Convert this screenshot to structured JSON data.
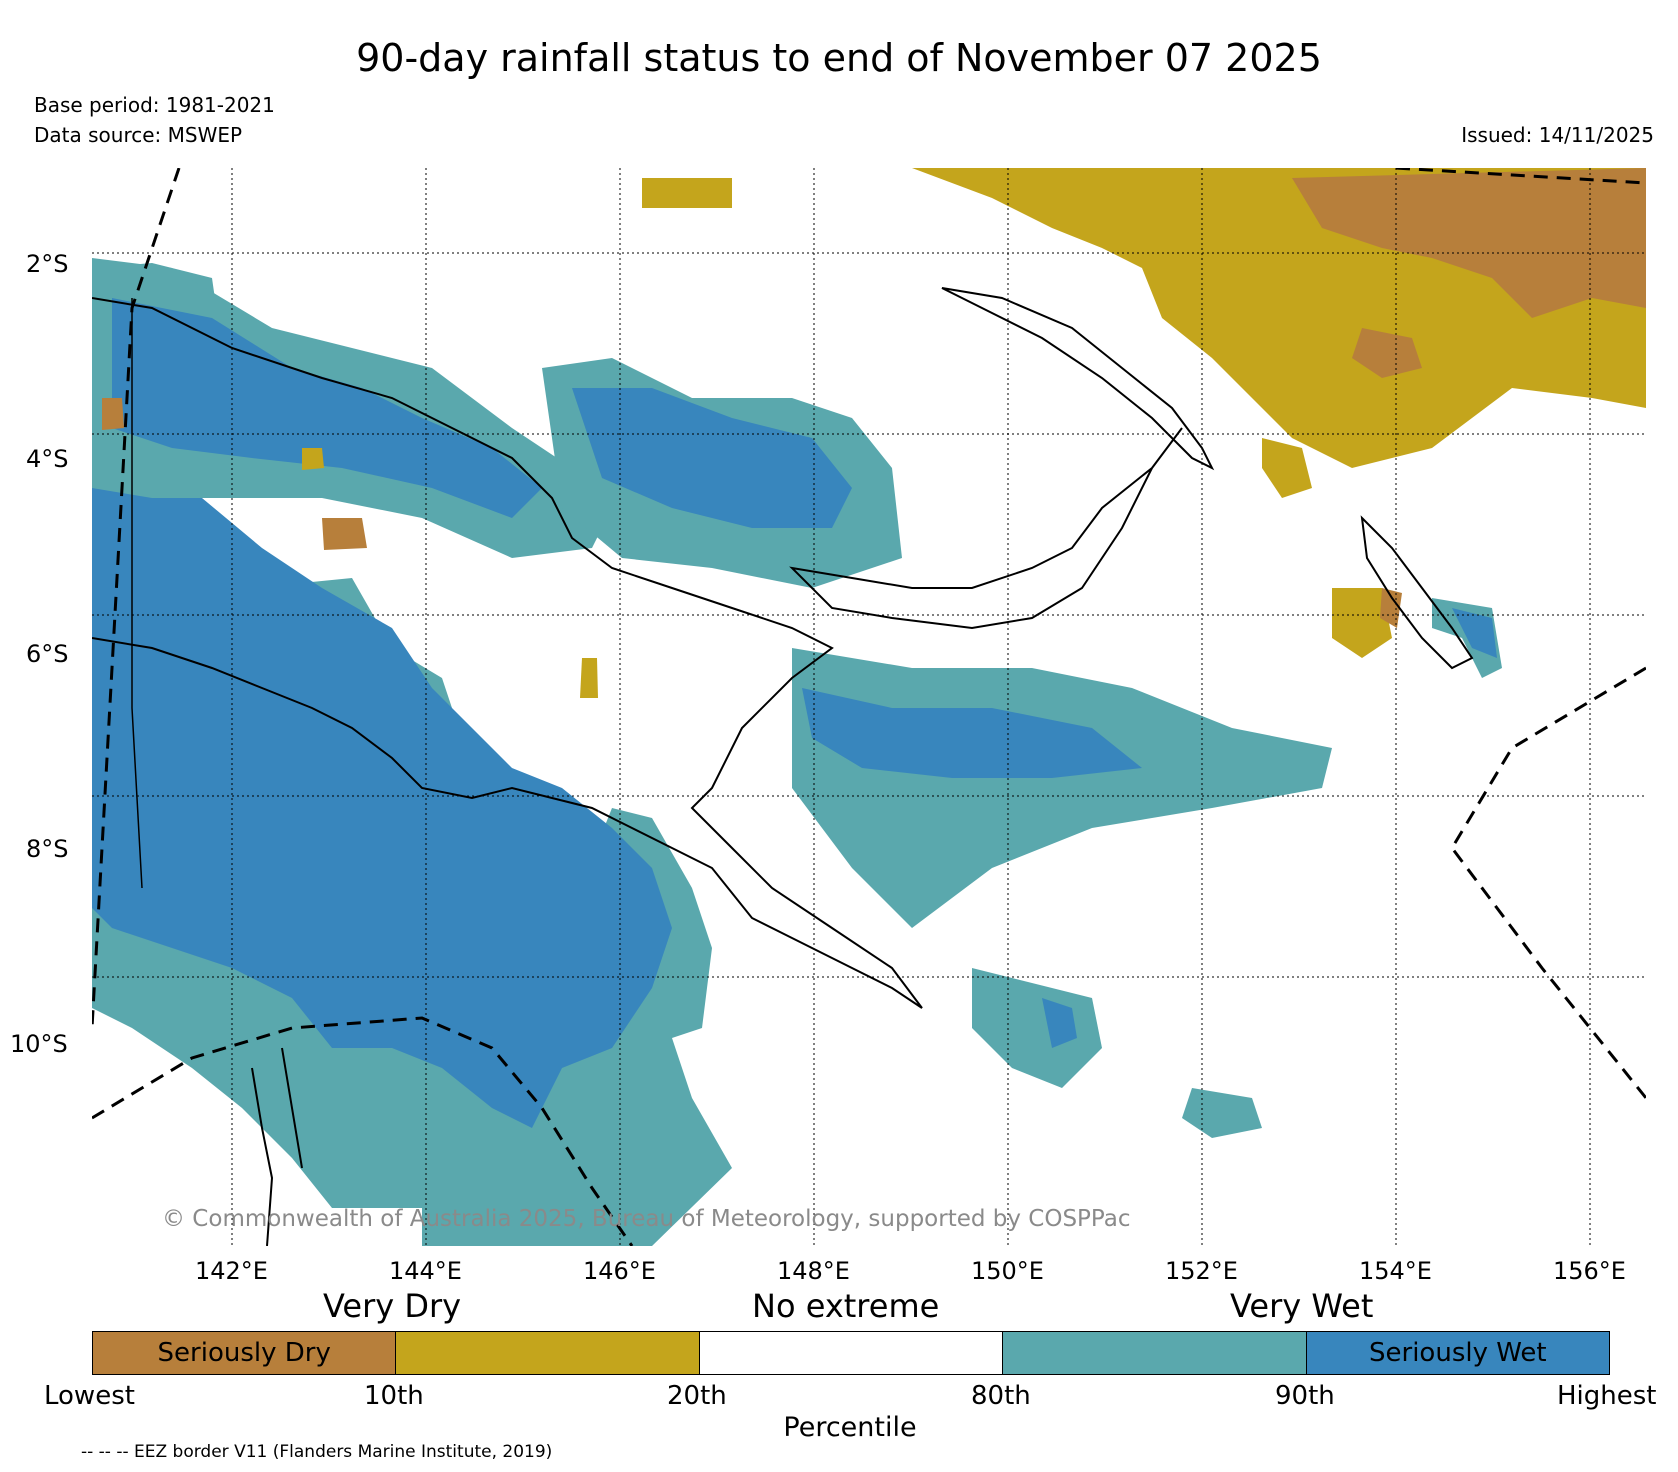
{
  "header": {
    "title": "90-day rainfall status to end of November 07 2025",
    "base_period": "Base period: 1981-2021",
    "data_source": "Data source: MSWEP",
    "issued": "Issued: 14/11/2025"
  },
  "map": {
    "latitude_labels": [
      "2°S",
      "4°S",
      "6°S",
      "8°S",
      "10°S"
    ],
    "longitude_labels": [
      "142°E",
      "144°E",
      "146°E",
      "148°E",
      "150°E",
      "152°E",
      "154°E",
      "156°E"
    ],
    "copyright": "© Commonwealth of Australia 2025, Bureau of Meteorology, supported by COSPPac",
    "colors": {
      "seriously_dry": "#b77f3b",
      "dry": "#c4a51c",
      "no_extreme": "#ffffff",
      "wet": "#5aa8ad",
      "seriously_wet": "#3886bd"
    }
  },
  "legend": {
    "headings": [
      "Very Dry",
      "No extreme",
      "Very Wet"
    ],
    "segments": [
      {
        "label": "Seriously Dry",
        "color": "#b77f3b"
      },
      {
        "label": "",
        "color": "#c4a51c"
      },
      {
        "label": "",
        "color": "#ffffff"
      },
      {
        "label": "",
        "color": "#5aa8ad"
      },
      {
        "label": "Seriously Wet",
        "color": "#3886bd"
      }
    ],
    "ticks": [
      "Lowest",
      "10th",
      "20th",
      "80th",
      "90th",
      "Highest"
    ],
    "axis_label": "Percentile",
    "eez_note": "-- -- -- EEZ border V11 (Flanders Marine Institute, 2019)"
  }
}
